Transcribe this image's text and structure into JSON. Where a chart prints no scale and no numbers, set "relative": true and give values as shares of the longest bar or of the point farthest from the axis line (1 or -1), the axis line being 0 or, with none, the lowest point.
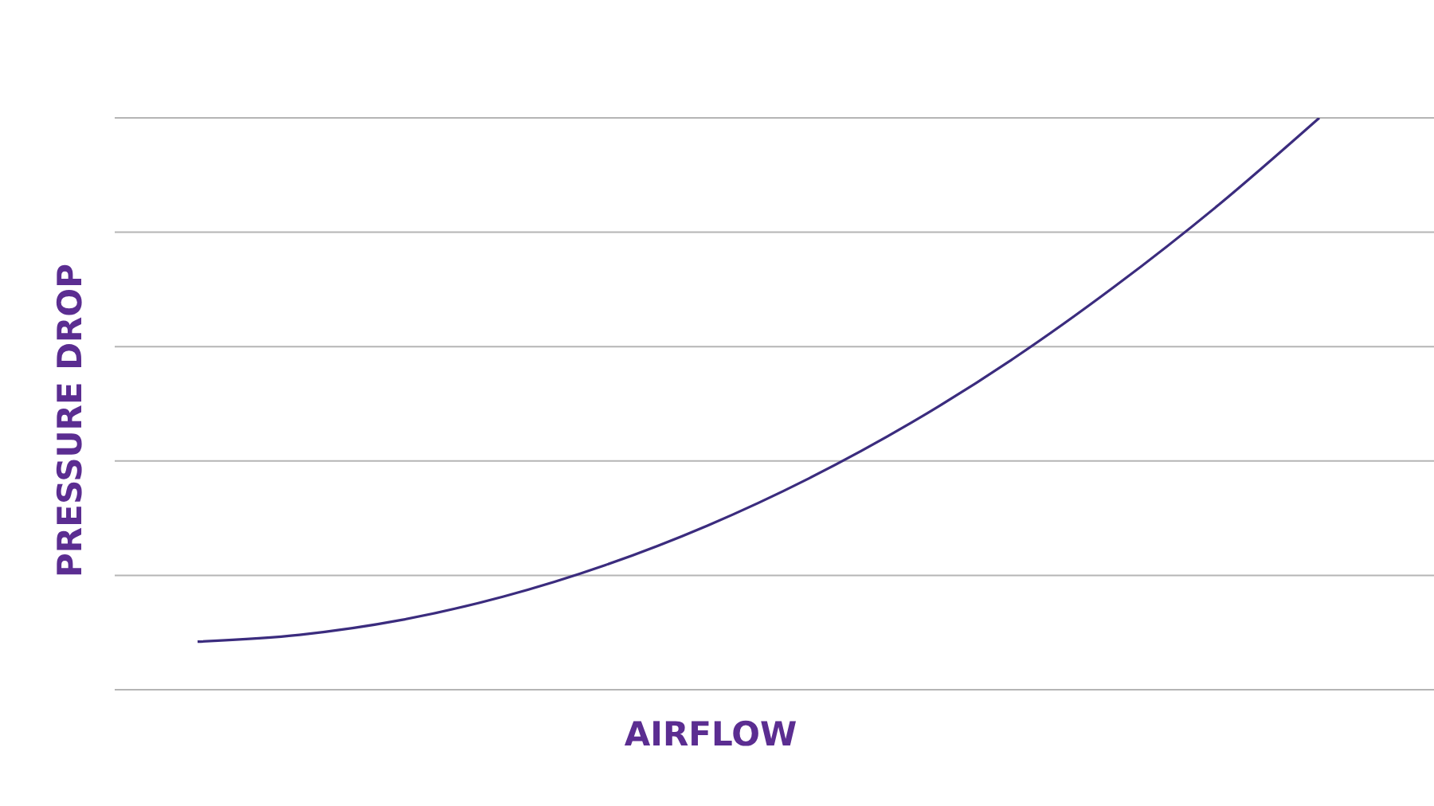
{
  "chart_data": {
    "type": "line",
    "xlabel": "AIRFLOW",
    "ylabel": "PRESSURE DROP",
    "relative": true,
    "grid": "y",
    "marker": "none",
    "line_style": "solid",
    "categories": [
      null,
      null,
      null,
      null,
      null,
      null,
      null,
      null,
      null,
      null,
      null,
      null
    ],
    "series": [
      {
        "color": "#3b2c7e",
        "values": [
          0.084,
          0.096,
          0.122,
          0.163,
          0.218,
          0.287,
          0.37,
          0.467,
          0.579,
          0.706,
          0.846,
          1
        ]
      }
    ]
  }
}
